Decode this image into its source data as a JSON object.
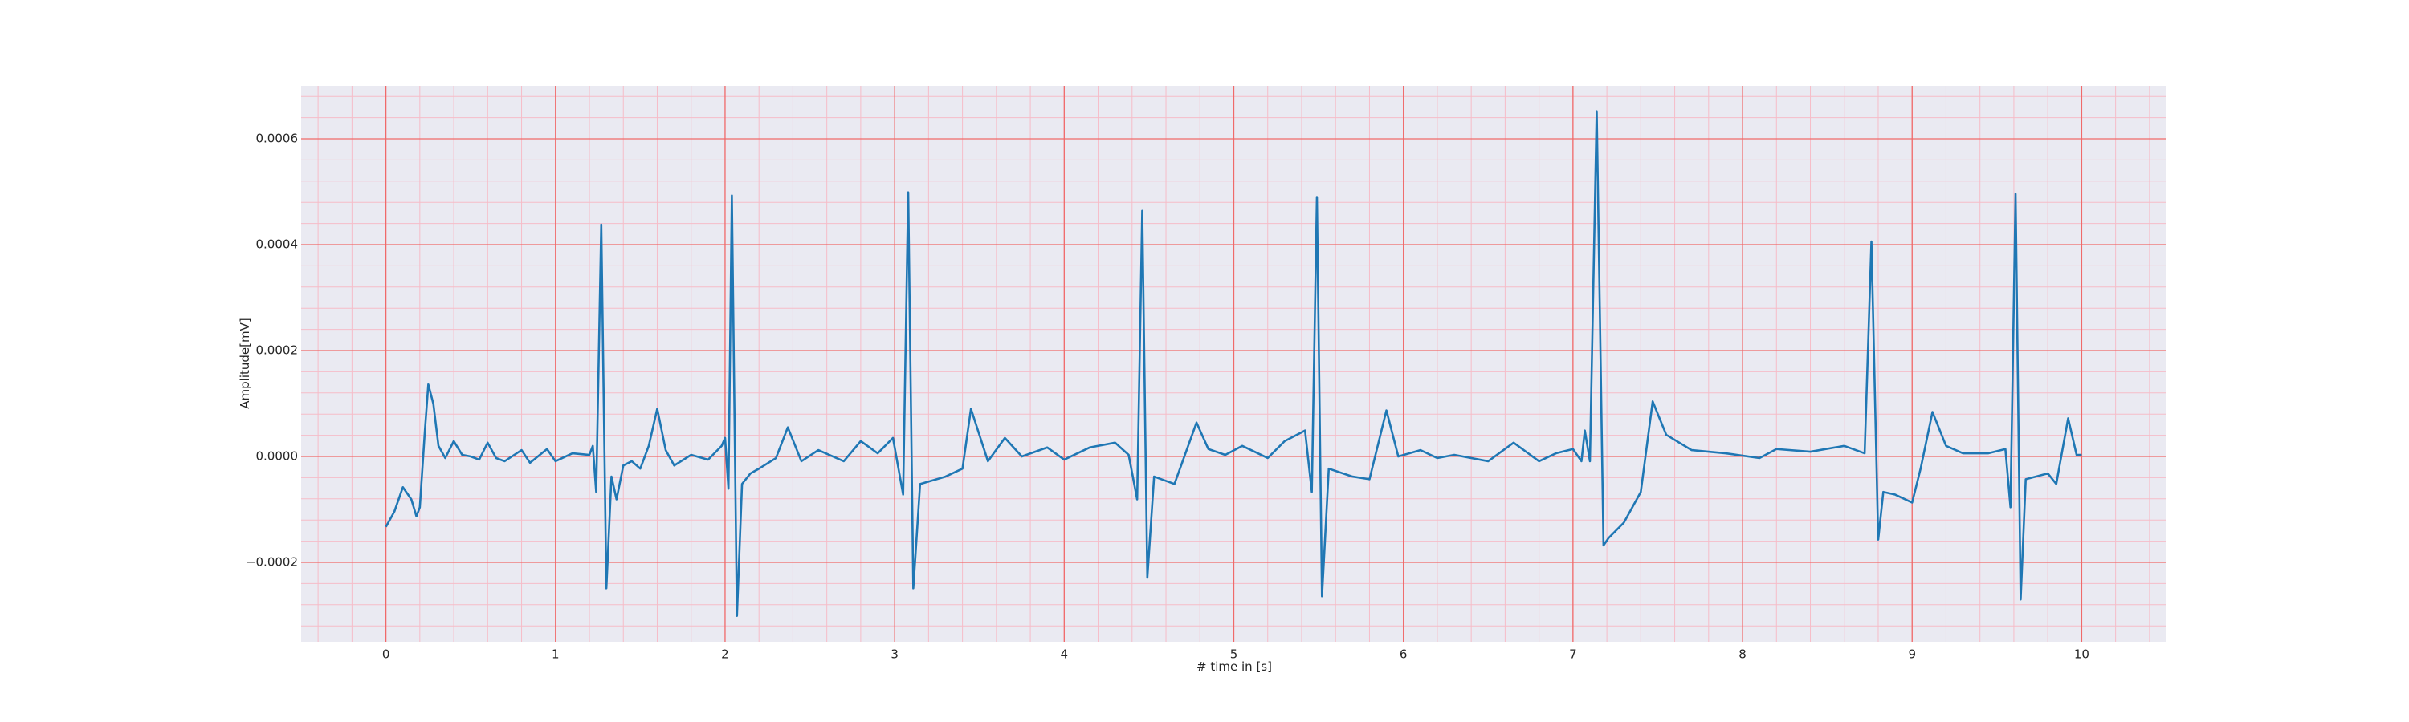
{
  "chart_data": {
    "type": "line",
    "xlabel": "# time in [s]",
    "ylabel": "Amplitude[mV]",
    "color": "#1f77b4",
    "xlim": [
      -0.5,
      10.5
    ],
    "xticks": [
      0,
      1,
      2,
      3,
      4,
      5,
      6,
      7,
      8,
      9,
      10
    ],
    "ylim": [
      -0.00035,
      0.0007
    ],
    "yticks": [
      {
        "value": -0.0002,
        "label": "−0.0002"
      },
      {
        "value": 0,
        "label": "0.0000"
      },
      {
        "value": 0.0002,
        "label": "0.0002"
      },
      {
        "value": 0.0004,
        "label": "0.0004"
      },
      {
        "value": 0.0006,
        "label": "0.0006"
      }
    ],
    "grid": true,
    "grid_color": "#f06a6a",
    "minor_grid": true,
    "minor_divisions": 5,
    "minor_grid_color": "#f6bcc8",
    "background": "#eaeaf2",
    "x": [
      0,
      0.05,
      0.1,
      0.15,
      0.18,
      0.2,
      0.23,
      0.25,
      0.28,
      0.31,
      0.35,
      0.4,
      0.45,
      0.5,
      0.55,
      0.6,
      0.65,
      0.7,
      0.8,
      0.85,
      0.95,
      1.0,
      1.1,
      1.2,
      1.22,
      1.24,
      1.27,
      1.3,
      1.33,
      1.36,
      1.4,
      1.45,
      1.5,
      1.55,
      1.6,
      1.65,
      1.7,
      1.8,
      1.9,
      1.98,
      2.0,
      2.02,
      2.04,
      2.07,
      2.1,
      2.15,
      2.2,
      2.3,
      2.37,
      2.45,
      2.55,
      2.7,
      2.8,
      2.9,
      2.99,
      3.05,
      3.08,
      3.11,
      3.15,
      3.3,
      3.4,
      3.45,
      3.55,
      3.65,
      3.75,
      3.9,
      4.0,
      4.15,
      4.3,
      4.38,
      4.43,
      4.46,
      4.49,
      4.53,
      4.65,
      4.78,
      4.85,
      4.95,
      5.05,
      5.2,
      5.3,
      5.42,
      5.46,
      5.49,
      5.52,
      5.56,
      5.7,
      5.8,
      5.9,
      5.97,
      6.1,
      6.2,
      6.3,
      6.5,
      6.65,
      6.8,
      6.9,
      7.0,
      7.05,
      7.07,
      7.1,
      7.14,
      7.18,
      7.21,
      7.3,
      7.4,
      7.47,
      7.55,
      7.7,
      7.9,
      8.1,
      8.2,
      8.4,
      8.6,
      8.72,
      8.76,
      8.8,
      8.83,
      8.9,
      9.0,
      9.05,
      9.12,
      9.2,
      9.3,
      9.45,
      9.55,
      9.58,
      9.61,
      9.64,
      9.67,
      9.8,
      9.85,
      9.92,
      9.97,
      10.0
    ],
    "values": [
      -0.000133,
      -0.000104,
      -5.8e-05,
      -8.1e-05,
      -0.000113,
      -9.6e-05,
      4.9e-05,
      0.000136,
      9.9e-05,
      2e-05,
      -3e-06,
      2.9e-05,
      3e-06,
      0,
      -6e-06,
      2.6e-05,
      -3e-06,
      -9e-06,
      1.2e-05,
      -1.2e-05,
      1.4e-05,
      -9e-06,
      6e-06,
      3e-06,
      2e-05,
      -6.7e-05,
      0.000438,
      -0.000249,
      -3.8e-05,
      -8.1e-05,
      -1.7e-05,
      -9e-06,
      -2.3e-05,
      2e-05,
      9e-05,
      1.2e-05,
      -1.7e-05,
      3e-06,
      -6e-06,
      2e-05,
      3.5e-05,
      -6.1e-05,
      0.000493,
      -0.000301,
      -5.2e-05,
      -3.2e-05,
      -2.3e-05,
      -3e-06,
      5.5e-05,
      -9e-06,
      1.2e-05,
      -9e-06,
      2.9e-05,
      6e-06,
      3.5e-05,
      -7.2e-05,
      0.000499,
      -0.000249,
      -5.2e-05,
      -3.8e-05,
      -2.3e-05,
      9e-05,
      -9e-06,
      3.5e-05,
      0,
      1.7e-05,
      -6e-06,
      1.7e-05,
      2.6e-05,
      3e-06,
      -8.1e-05,
      0.000464,
      -0.000229,
      -3.8e-05,
      -5.2e-05,
      6.4e-05,
      1.4e-05,
      3e-06,
      2e-05,
      -3e-06,
      2.9e-05,
      4.9e-05,
      -6.7e-05,
      0.00049,
      -0.000264,
      -2.3e-05,
      -3.8e-05,
      -4.3e-05,
      8.7e-05,
      0,
      1.2e-05,
      -3e-06,
      3e-06,
      -9e-06,
      2.6e-05,
      -9e-06,
      6e-06,
      1.4e-05,
      -9e-06,
      4.9e-05,
      -9e-06,
      0.000652,
      -0.000168,
      -0.000154,
      -0.000125,
      -6.7e-05,
      0.000104,
      4.1e-05,
      1.2e-05,
      6e-06,
      -3e-06,
      1.4e-05,
      9e-06,
      2e-05,
      6e-06,
      0.000406,
      -0.000157,
      -6.7e-05,
      -7.2e-05,
      -8.7e-05,
      -2.3e-05,
      8.4e-05,
      2e-05,
      6e-06,
      6e-06,
      1.4e-05,
      -9.6e-05,
      0.000496,
      -0.00027,
      -4.3e-05,
      -3.2e-05,
      -5.2e-05,
      7.2e-05,
      3e-06,
      3e-06
    ]
  }
}
